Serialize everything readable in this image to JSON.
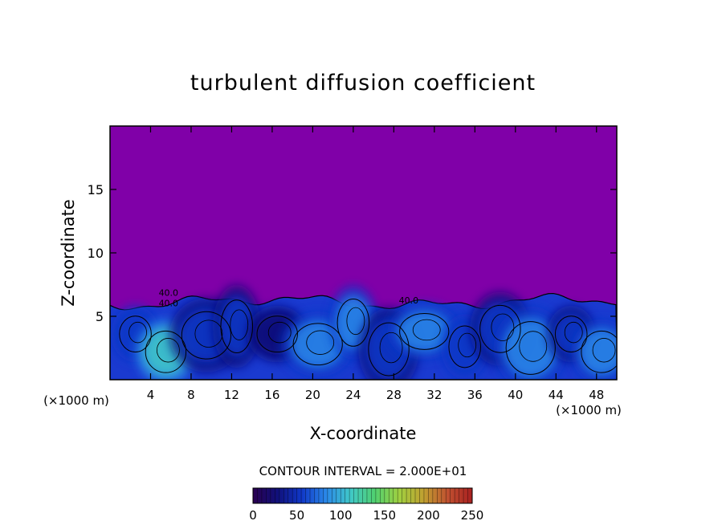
{
  "chart_data": {
    "type": "heatmap",
    "title": "turbulent diffusion coefficient",
    "xlabel": "X-coordinate",
    "ylabel": "Z-coordinate",
    "x_unit": "(×1000 m)",
    "y_unit": "(×1000 m)",
    "xlim": [
      0,
      50
    ],
    "ylim": [
      0,
      20
    ],
    "x_ticks": [
      4,
      8,
      12,
      16,
      20,
      24,
      28,
      32,
      36,
      40,
      44,
      48
    ],
    "y_ticks": [
      5,
      10,
      15
    ],
    "boundary_layer_top_km": 6.5,
    "contour_labels": [
      "40.0",
      "40.0",
      "40.0"
    ],
    "contour_interval_text": "CONTOUR INTERVAL = 2.000E+01",
    "colorbar": {
      "min": 0,
      "max": 250,
      "ticks": [
        0,
        50,
        100,
        150,
        200,
        250
      ],
      "colors": [
        "#2a0050",
        "#10107a",
        "#1038c8",
        "#2a88e8",
        "#40c8c8",
        "#50d070",
        "#a0d040",
        "#c0a030",
        "#c05030",
        "#a82020"
      ]
    },
    "background_color": "#8000a8",
    "eddies": [
      {
        "x": 2.5,
        "z": 3.6,
        "value": 60
      },
      {
        "x": 5.5,
        "z": 2.2,
        "value": 110
      },
      {
        "x": 9.5,
        "z": 3.5,
        "value": 45
      },
      {
        "x": 12.5,
        "z": 4.2,
        "value": 55
      },
      {
        "x": 16.5,
        "z": 3.6,
        "value": 40
      },
      {
        "x": 20.5,
        "z": 2.8,
        "value": 70
      },
      {
        "x": 24.0,
        "z": 4.5,
        "value": 85
      },
      {
        "x": 27.5,
        "z": 2.4,
        "value": 45
      },
      {
        "x": 31.0,
        "z": 3.8,
        "value": 75
      },
      {
        "x": 35.0,
        "z": 2.6,
        "value": 65
      },
      {
        "x": 38.5,
        "z": 4.0,
        "value": 55
      },
      {
        "x": 41.5,
        "z": 2.5,
        "value": 95
      },
      {
        "x": 45.5,
        "z": 3.6,
        "value": 50
      },
      {
        "x": 48.5,
        "z": 2.2,
        "value": 80
      }
    ]
  }
}
